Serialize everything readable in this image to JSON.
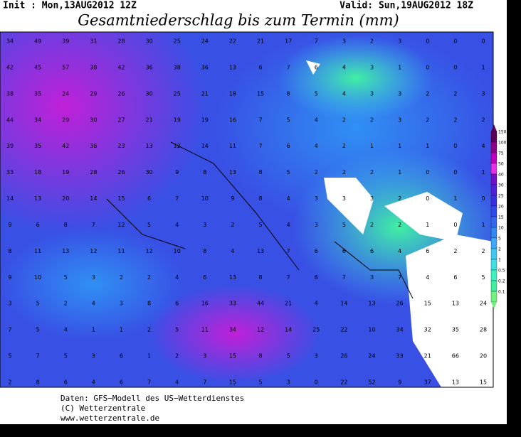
{
  "header": {
    "init": "Init : Mon,13AUG2012 12Z",
    "valid": "Valid: Sun,19AUG2012 18Z",
    "title": "Gesamtniederschlag bis zum Termin (mm)"
  },
  "map": {
    "rows": [
      [
        34,
        49,
        39,
        31,
        28,
        30,
        25,
        24,
        22,
        21,
        17,
        7,
        3,
        2,
        3,
        0,
        0,
        0
      ],
      [
        42,
        45,
        57,
        38,
        42,
        36,
        38,
        36,
        13,
        6,
        7,
        6,
        4,
        3,
        1,
        0,
        0,
        1
      ],
      [
        38,
        35,
        24,
        29,
        26,
        30,
        25,
        21,
        18,
        15,
        8,
        5,
        4,
        3,
        3,
        2,
        2,
        3
      ],
      [
        44,
        34,
        29,
        30,
        27,
        21,
        19,
        19,
        16,
        7,
        5,
        4,
        2,
        2,
        3,
        2,
        2,
        2
      ],
      [
        39,
        35,
        42,
        36,
        23,
        13,
        12,
        14,
        11,
        7,
        6,
        4,
        2,
        1,
        1,
        1,
        0,
        4
      ],
      [
        33,
        18,
        19,
        28,
        26,
        30,
        9,
        8,
        13,
        8,
        5,
        2,
        2,
        2,
        1,
        0,
        0,
        1
      ],
      [
        14,
        13,
        20,
        14,
        15,
        6,
        7,
        10,
        9,
        8,
        4,
        3,
        3,
        3,
        2,
        0,
        1,
        0
      ],
      [
        9,
        6,
        8,
        7,
        12,
        5,
        4,
        3,
        2,
        5,
        4,
        3,
        5,
        2,
        2,
        1,
        0,
        1
      ],
      [
        8,
        11,
        13,
        12,
        11,
        12,
        10,
        8,
        4,
        13,
        7,
        6,
        6,
        6,
        4,
        6,
        2,
        2
      ],
      [
        9,
        10,
        5,
        3,
        2,
        2,
        4,
        6,
        13,
        8,
        7,
        6,
        7,
        3,
        7,
        4,
        6,
        5
      ],
      [
        3,
        5,
        2,
        4,
        3,
        8,
        6,
        16,
        33,
        44,
        21,
        4,
        14,
        13,
        26,
        15,
        13,
        24
      ],
      [
        7,
        5,
        4,
        1,
        1,
        2,
        5,
        11,
        34,
        12,
        14,
        25,
        22,
        10,
        34,
        32,
        35,
        28
      ],
      [
        5,
        7,
        5,
        3,
        6,
        1,
        2,
        3,
        15,
        8,
        5,
        3,
        26,
        24,
        33,
        21,
        66,
        20
      ],
      [
        2,
        8,
        6,
        4,
        6,
        7,
        4,
        7,
        15,
        5,
        3,
        0,
        22,
        52,
        9,
        37,
        13,
        15
      ]
    ]
  },
  "legend": {
    "levels": [
      {
        "value": 150,
        "color": "#5a005a"
      },
      {
        "value": 100,
        "color": "#8c008c"
      },
      {
        "value": 75,
        "color": "#be00be"
      },
      {
        "value": 50,
        "color": "#e830e8"
      },
      {
        "value": 40,
        "color": "#7010c8"
      },
      {
        "value": 30,
        "color": "#5020d8"
      },
      {
        "value": 25,
        "color": "#3830e0"
      },
      {
        "value": 20,
        "color": "#3048ec"
      },
      {
        "value": 15,
        "color": "#3068f0"
      },
      {
        "value": 10,
        "color": "#3088f4"
      },
      {
        "value": 5,
        "color": "#40a8f8"
      },
      {
        "value": 2,
        "color": "#40c8f0"
      },
      {
        "value": 1,
        "color": "#40e0e0"
      },
      {
        "value": 0.5,
        "color": "#40f0c0"
      },
      {
        "value": 0.2,
        "color": "#40f0a0"
      },
      {
        "value": 0.1,
        "color": "#70f080"
      }
    ]
  },
  "footer": {
    "lines": [
      "Daten: GFS−Modell des US−Wetterdienstes",
      "(C) Wetterzentrale",
      "www.wetterzentrale.de"
    ]
  }
}
